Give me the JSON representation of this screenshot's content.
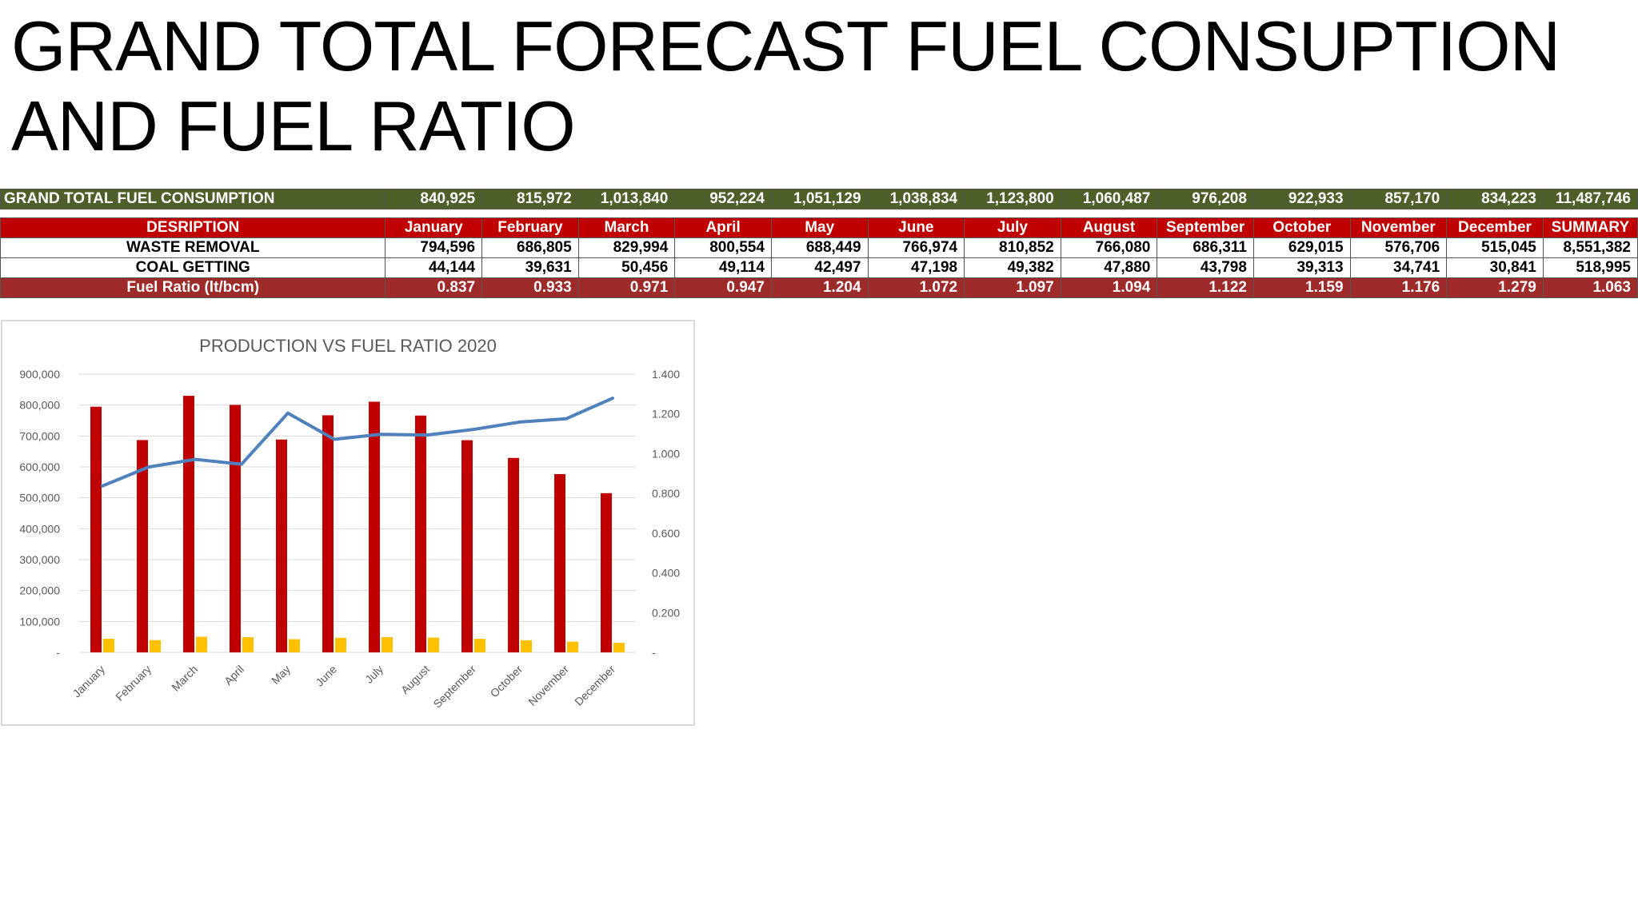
{
  "slide": {
    "title": "GRAND TOTAL FORECAST FUEL CONSUPTION AND FUEL RATIO"
  },
  "table": {
    "grand_total": {
      "label": "GRAND TOTAL FUEL CONSUMPTION",
      "values": [
        "840,925",
        "815,972",
        "1,013,840",
        "952,224",
        "1,051,129",
        "1,038,834",
        "1,123,800",
        "1,060,487",
        "976,208",
        "922,933",
        "857,170",
        "834,223",
        "11,487,746"
      ]
    },
    "header": {
      "label": "DESRIPTION",
      "columns": [
        "January",
        "February",
        "March",
        "April",
        "May",
        "June",
        "July",
        "August",
        "September",
        "October",
        "November",
        "December",
        "SUMMARY"
      ]
    },
    "rows": [
      {
        "label": "WASTE REMOVAL",
        "values": [
          "794,596",
          "686,805",
          "829,994",
          "800,554",
          "688,449",
          "766,974",
          "810,852",
          "766,080",
          "686,311",
          "629,015",
          "576,706",
          "515,045",
          "8,551,382"
        ]
      },
      {
        "label": "COAL GETTING",
        "values": [
          "44,144",
          "39,631",
          "50,456",
          "49,114",
          "42,497",
          "47,198",
          "49,382",
          "47,880",
          "43,798",
          "39,313",
          "34,741",
          "30,841",
          "518,995"
        ]
      }
    ],
    "ratio": {
      "label": "Fuel Ratio (lt/bcm)",
      "values": [
        "0.837",
        "0.933",
        "0.971",
        "0.947",
        "1.204",
        "1.072",
        "1.097",
        "1.094",
        "1.122",
        "1.159",
        "1.176",
        "1.279",
        "1.063"
      ]
    }
  },
  "chart_data": {
    "type": "bar",
    "title": "PRODUCTION VS FUEL RATIO 2020",
    "categories": [
      "January",
      "February",
      "March",
      "April",
      "May",
      "June",
      "July",
      "August",
      "September",
      "October",
      "November",
      "December"
    ],
    "series": [
      {
        "values": [
          794596,
          686805,
          829994,
          800554,
          688449,
          766974,
          810852,
          766080,
          686311,
          629015,
          576706,
          515045
        ],
        "axis": "left",
        "kind": "bar",
        "color": "#c00000"
      },
      {
        "values": [
          44144,
          39631,
          50456,
          49114,
          42497,
          47198,
          49382,
          47880,
          43798,
          39313,
          34741,
          30841
        ],
        "axis": "left",
        "kind": "bar",
        "color": "#ffc000"
      },
      {
        "values": [
          0.837,
          0.933,
          0.971,
          0.947,
          1.204,
          1.072,
          1.097,
          1.094,
          1.122,
          1.159,
          1.176,
          1.279
        ],
        "axis": "right",
        "kind": "line",
        "color": "#4f81bd"
      }
    ],
    "ylim": [
      0,
      900000
    ],
    "y2lim": [
      0,
      1.4
    ],
    "yticks": [
      "-",
      "100,000",
      "200,000",
      "300,000",
      "400,000",
      "500,000",
      "600,000",
      "700,000",
      "800,000",
      "900,000"
    ],
    "y2ticks": [
      "-",
      "0.200",
      "0.400",
      "0.600",
      "0.800",
      "1.000",
      "1.200",
      "1.400"
    ],
    "grid": true,
    "legend": "none"
  }
}
